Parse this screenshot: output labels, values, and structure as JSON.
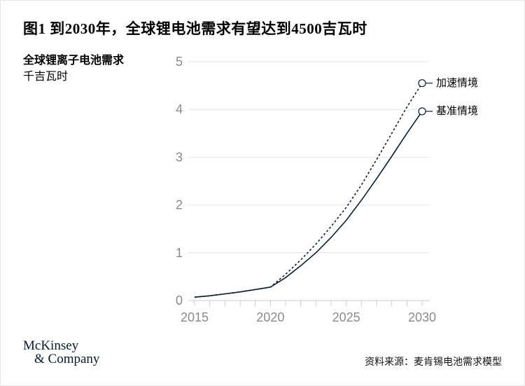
{
  "header": {
    "title": "图1 到2030年，全球锂电池需求有望达到4500吉瓦时"
  },
  "yaxis_label": {
    "line1": "全球锂离子电池需求",
    "line2": "千吉瓦时"
  },
  "footer": {
    "logo_line1": "McKinsey",
    "logo_line2": "& Company",
    "source": "资料来源：麦肯锡电池需求模型"
  },
  "colors": {
    "line": "#0a1f2c",
    "grid": "#e4e4e4",
    "axis_line": "#cccccc",
    "axis_text": "#8a8a8a",
    "marker_fill": "#ffffff"
  },
  "chart_data": {
    "type": "line",
    "title": "到2030年，全球锂电池需求有望达到4500吉瓦时",
    "ylabel": "全球锂离子电池需求（千吉瓦时）",
    "xlabel": "",
    "x": [
      2015,
      2016,
      2017,
      2018,
      2019,
      2020,
      2021,
      2022,
      2023,
      2024,
      2025,
      2026,
      2027,
      2028,
      2029,
      2030
    ],
    "series": [
      {
        "name": "加速情境",
        "style": "dashed",
        "values": [
          0.07,
          0.1,
          0.14,
          0.18,
          0.23,
          0.28,
          0.55,
          0.85,
          1.18,
          1.55,
          1.95,
          2.42,
          2.95,
          3.5,
          4.05,
          4.55
        ]
      },
      {
        "name": "基准情境",
        "style": "solid",
        "values": [
          0.07,
          0.1,
          0.14,
          0.18,
          0.23,
          0.28,
          0.48,
          0.73,
          1.0,
          1.32,
          1.68,
          2.1,
          2.55,
          3.02,
          3.5,
          3.96
        ]
      }
    ],
    "xlim": [
      2015,
      2030
    ],
    "ylim": [
      0,
      5
    ],
    "yticks": [
      0,
      1,
      2,
      3,
      4,
      5
    ],
    "xticks_minor_every": 1,
    "xticks_labeled": [
      2015,
      2020,
      2025,
      2030
    ],
    "grid": "horizontal",
    "legend_position": "right-of-line-end",
    "endpoint_marker": "open-circle"
  }
}
